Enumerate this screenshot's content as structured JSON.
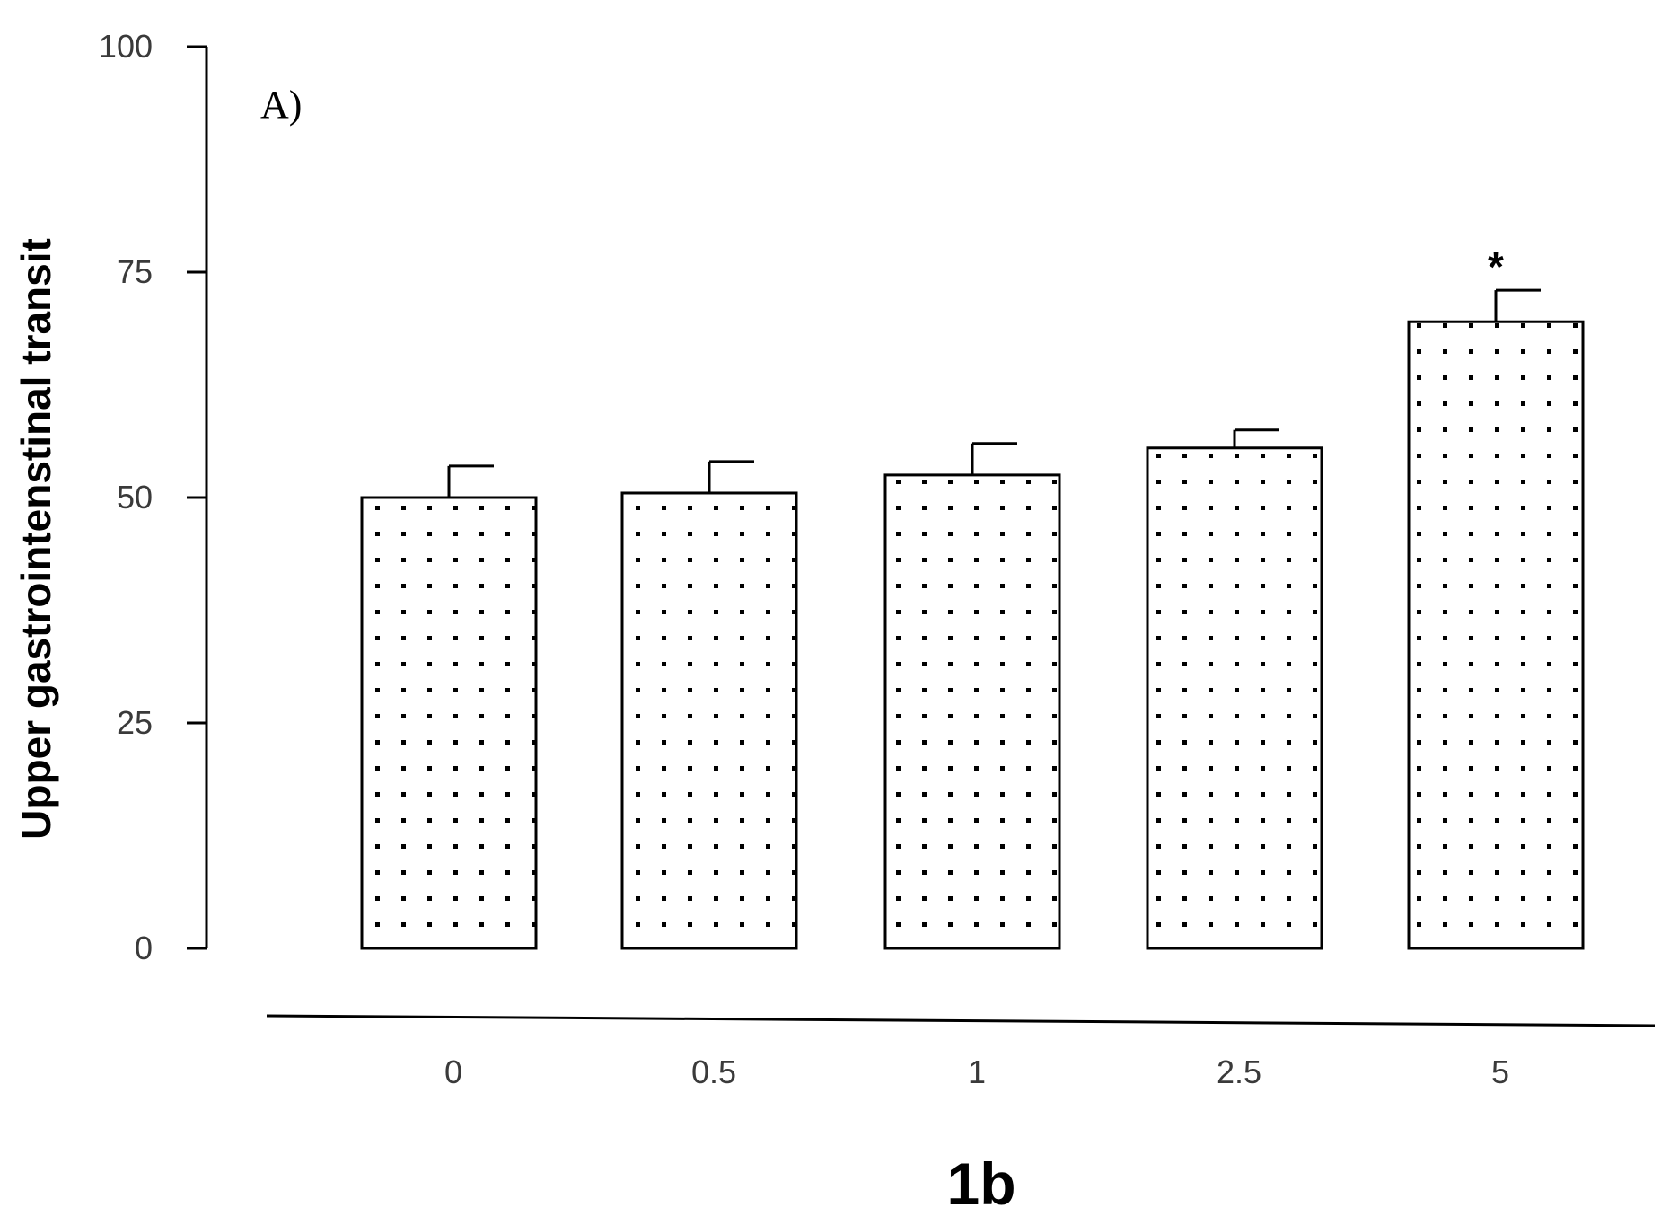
{
  "chart_data": {
    "type": "bar",
    "panel_label": "A)",
    "ylabel": "Upper gastrointenstinal transit",
    "xlabel": "1b",
    "ylim": [
      0,
      100
    ],
    "yticks": [
      "0",
      "25",
      "50",
      "75",
      "100"
    ],
    "categories": [
      "0",
      "0.5",
      "1",
      "2.5",
      "5"
    ],
    "values": [
      50,
      50.5,
      52.5,
      55.5,
      69.5
    ],
    "errors": [
      3.5,
      3.5,
      3.5,
      2,
      3.5
    ],
    "annotations": [
      "",
      "",
      "",
      "",
      "*"
    ],
    "grid": false,
    "bar_pattern": "dotted"
  }
}
